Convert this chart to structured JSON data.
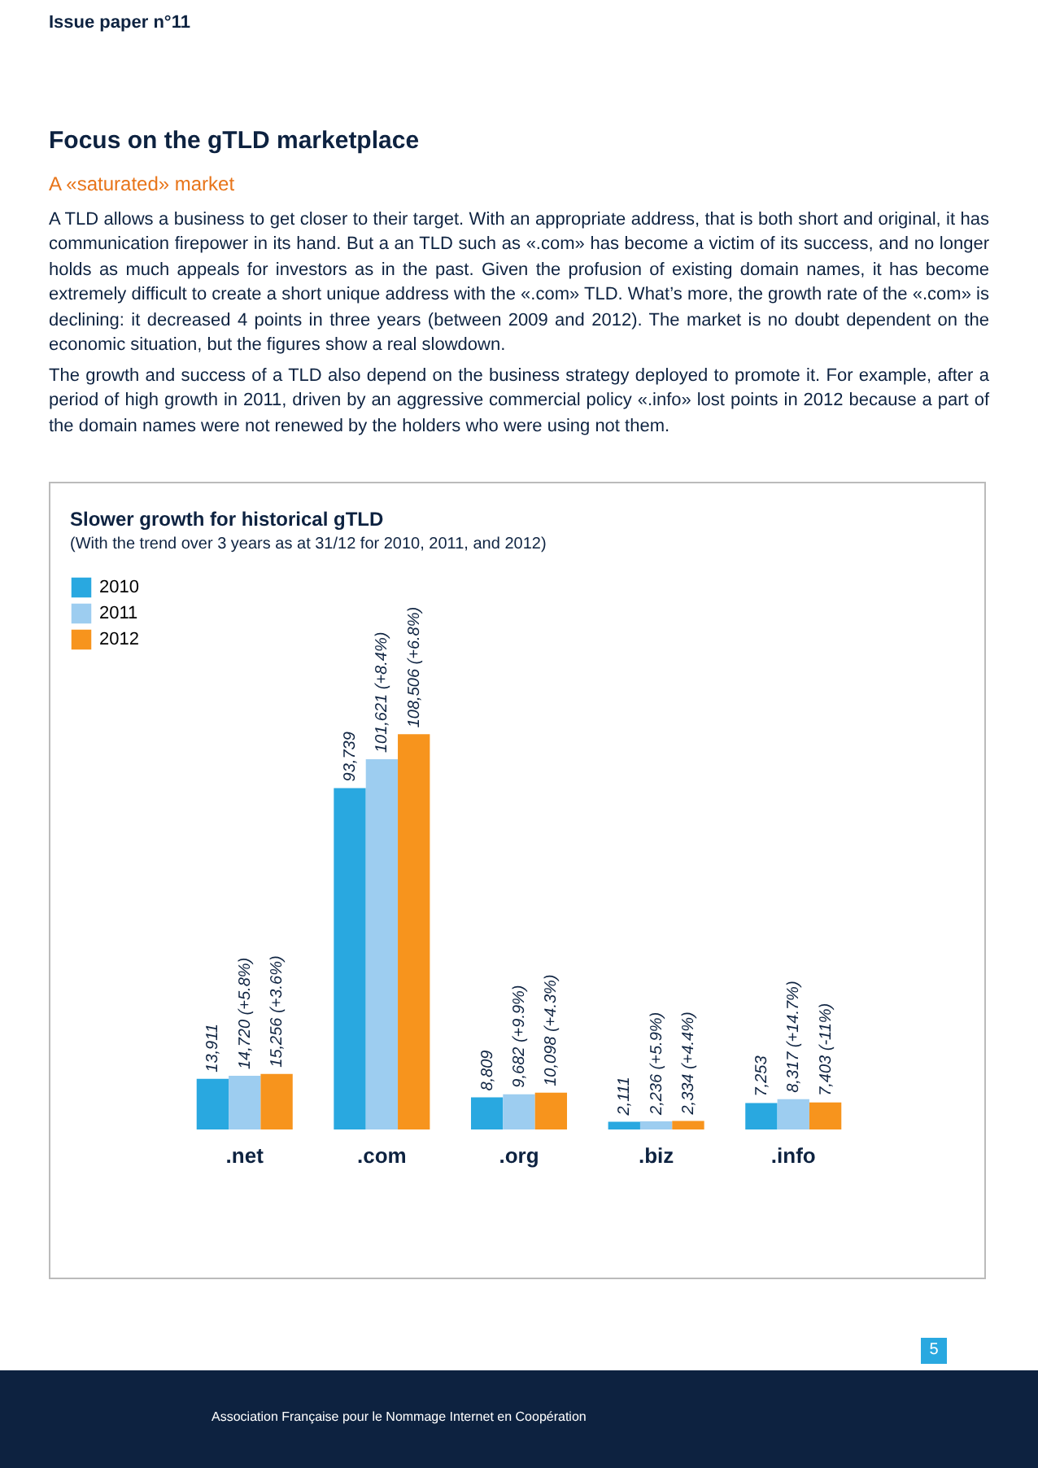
{
  "chart_data": {
    "type": "bar",
    "title": "Slower growth for historical gTLD",
    "subtitle": "(With the trend over 3 years as at 31/12 for 2010, 2011, and 2012)",
    "categories": [
      ".net",
      ".com",
      ".org",
      ".biz",
      ".info"
    ],
    "series": [
      {
        "name": "2010",
        "color": "#29a8e0",
        "values": [
          13911,
          93739,
          8809,
          2111,
          7253
        ],
        "value_labels": [
          "13,911",
          "93,739",
          "8,809",
          "2,111",
          "7,253"
        ]
      },
      {
        "name": "2011",
        "color": "#9dcdf0",
        "values": [
          14720,
          101621,
          9682,
          2236,
          8317
        ],
        "value_labels": [
          "14,720 (+5.8%)",
          "101,621 (+8.4%)",
          "9,682 (+9.9%)",
          "2,236 (+5.9%)",
          "8,317 (+14.7%)"
        ]
      },
      {
        "name": "2012",
        "color": "#f7941d",
        "values": [
          15256,
          108506,
          10098,
          2334,
          7403
        ],
        "value_labels": [
          "15,256 (+3.6%)",
          "108,506 (+6.8%)",
          "10,098 (+4.3%)",
          "2,334 (+4.4%)",
          "7,403 (-11%)"
        ]
      }
    ],
    "legend": "left",
    "annotations": [
      "Issue paper n°11",
      "Focus on the gTLD marketplace",
      "A «saturated» market",
      "A TLD allows a business to get closer to their target. With an appropriate address, that is both short and original, it has communication firepower in its hand. But a an TLD such as «.com» has become a victim of its success, and no longer holds as much appeals for investors as in the past. Given the profusion of existing domain names, it has become extremely difficult to create a short unique address with the «.com» TLD. What’s more, the growth rate of the «.com» is declining: it decreased 4 points in three years (between 2009 and 2012). The market is no doubt dependent on the economic situation, but the figures show a real slowdown.",
      "The growth and success of a TLD also depend on the business strategy deployed to promote it. For example, after a period of high growth in 2011, driven by an aggressive commercial policy «.info» lost points in 2012 because a part of the domain names were not renewed by the holders who were using not them.",
      "5",
      "Association Française pour le Nommage Internet en Coopération"
    ]
  }
}
